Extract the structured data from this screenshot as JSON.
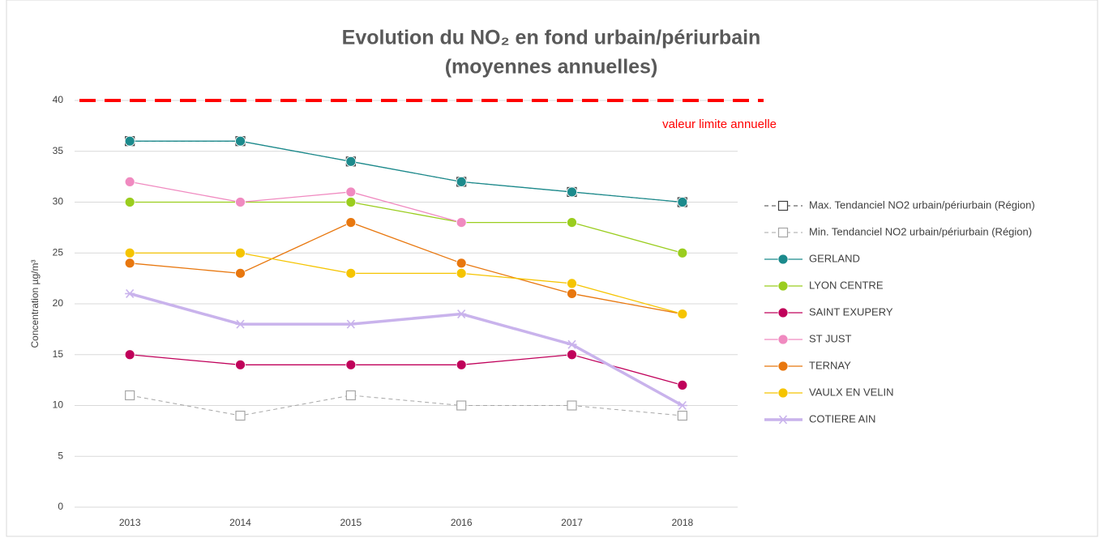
{
  "chart_data": {
    "type": "line",
    "title": "Evolution du NO₂ en fond urbain/périurbain",
    "subtitle": "(moyennes annuelles)",
    "y_label": "Concentration µg/m³",
    "categories": [
      "2013",
      "2014",
      "2015",
      "2016",
      "2017",
      "2018"
    ],
    "ylim": [
      0,
      40
    ],
    "yticks": [
      0,
      5,
      10,
      15,
      20,
      25,
      30,
      35,
      40
    ],
    "grid": true,
    "legend": "right",
    "reference_line": {
      "value": 40,
      "label": "valeur limite annuelle",
      "color": "#ff0000"
    },
    "series": [
      {
        "name": "Max. Tendanciel NO2 urbain/périurbain (Région)",
        "color": "#404040",
        "marker": "square",
        "dash": true,
        "line_width": 1,
        "values": [
          36,
          36,
          34,
          32,
          31,
          30
        ]
      },
      {
        "name": "Min. Tendanciel NO2 urbain/périurbain (Région)",
        "color": "#a6a6a6",
        "marker": "square",
        "dash": true,
        "line_width": 1,
        "values": [
          11,
          9,
          11,
          10,
          10,
          9
        ]
      },
      {
        "name": "GERLAND",
        "color": "#1b8a8c",
        "marker": "circle",
        "dash": false,
        "line_width": 1.3,
        "values": [
          36,
          36,
          34,
          32,
          31,
          30
        ]
      },
      {
        "name": "LYON CENTRE",
        "color": "#9acd1e",
        "marker": "circle",
        "dash": false,
        "line_width": 1.3,
        "values": [
          30,
          30,
          30,
          28,
          28,
          25
        ]
      },
      {
        "name": "SAINT EXUPERY",
        "color": "#c0005a",
        "marker": "circle",
        "dash": false,
        "line_width": 1.3,
        "values": [
          15,
          14,
          14,
          14,
          15,
          12
        ]
      },
      {
        "name": "ST JUST",
        "color": "#f08ac0",
        "marker": "circle",
        "dash": false,
        "line_width": 1.3,
        "values": [
          32,
          30,
          31,
          28,
          null,
          null
        ]
      },
      {
        "name": "TERNAY",
        "color": "#e8770e",
        "marker": "circle",
        "dash": false,
        "line_width": 1.3,
        "values": [
          24,
          23,
          28,
          24,
          21,
          19
        ]
      },
      {
        "name": "VAULX EN VELIN",
        "color": "#f5c400",
        "marker": "circle",
        "dash": false,
        "line_width": 1.3,
        "values": [
          25,
          25,
          23,
          23,
          22,
          19
        ]
      },
      {
        "name": "COTIERE AIN",
        "color": "#c9b3ec",
        "marker": "star",
        "dash": false,
        "line_width": 3.5,
        "values": [
          21,
          18,
          18,
          19,
          16,
          10
        ]
      }
    ]
  }
}
